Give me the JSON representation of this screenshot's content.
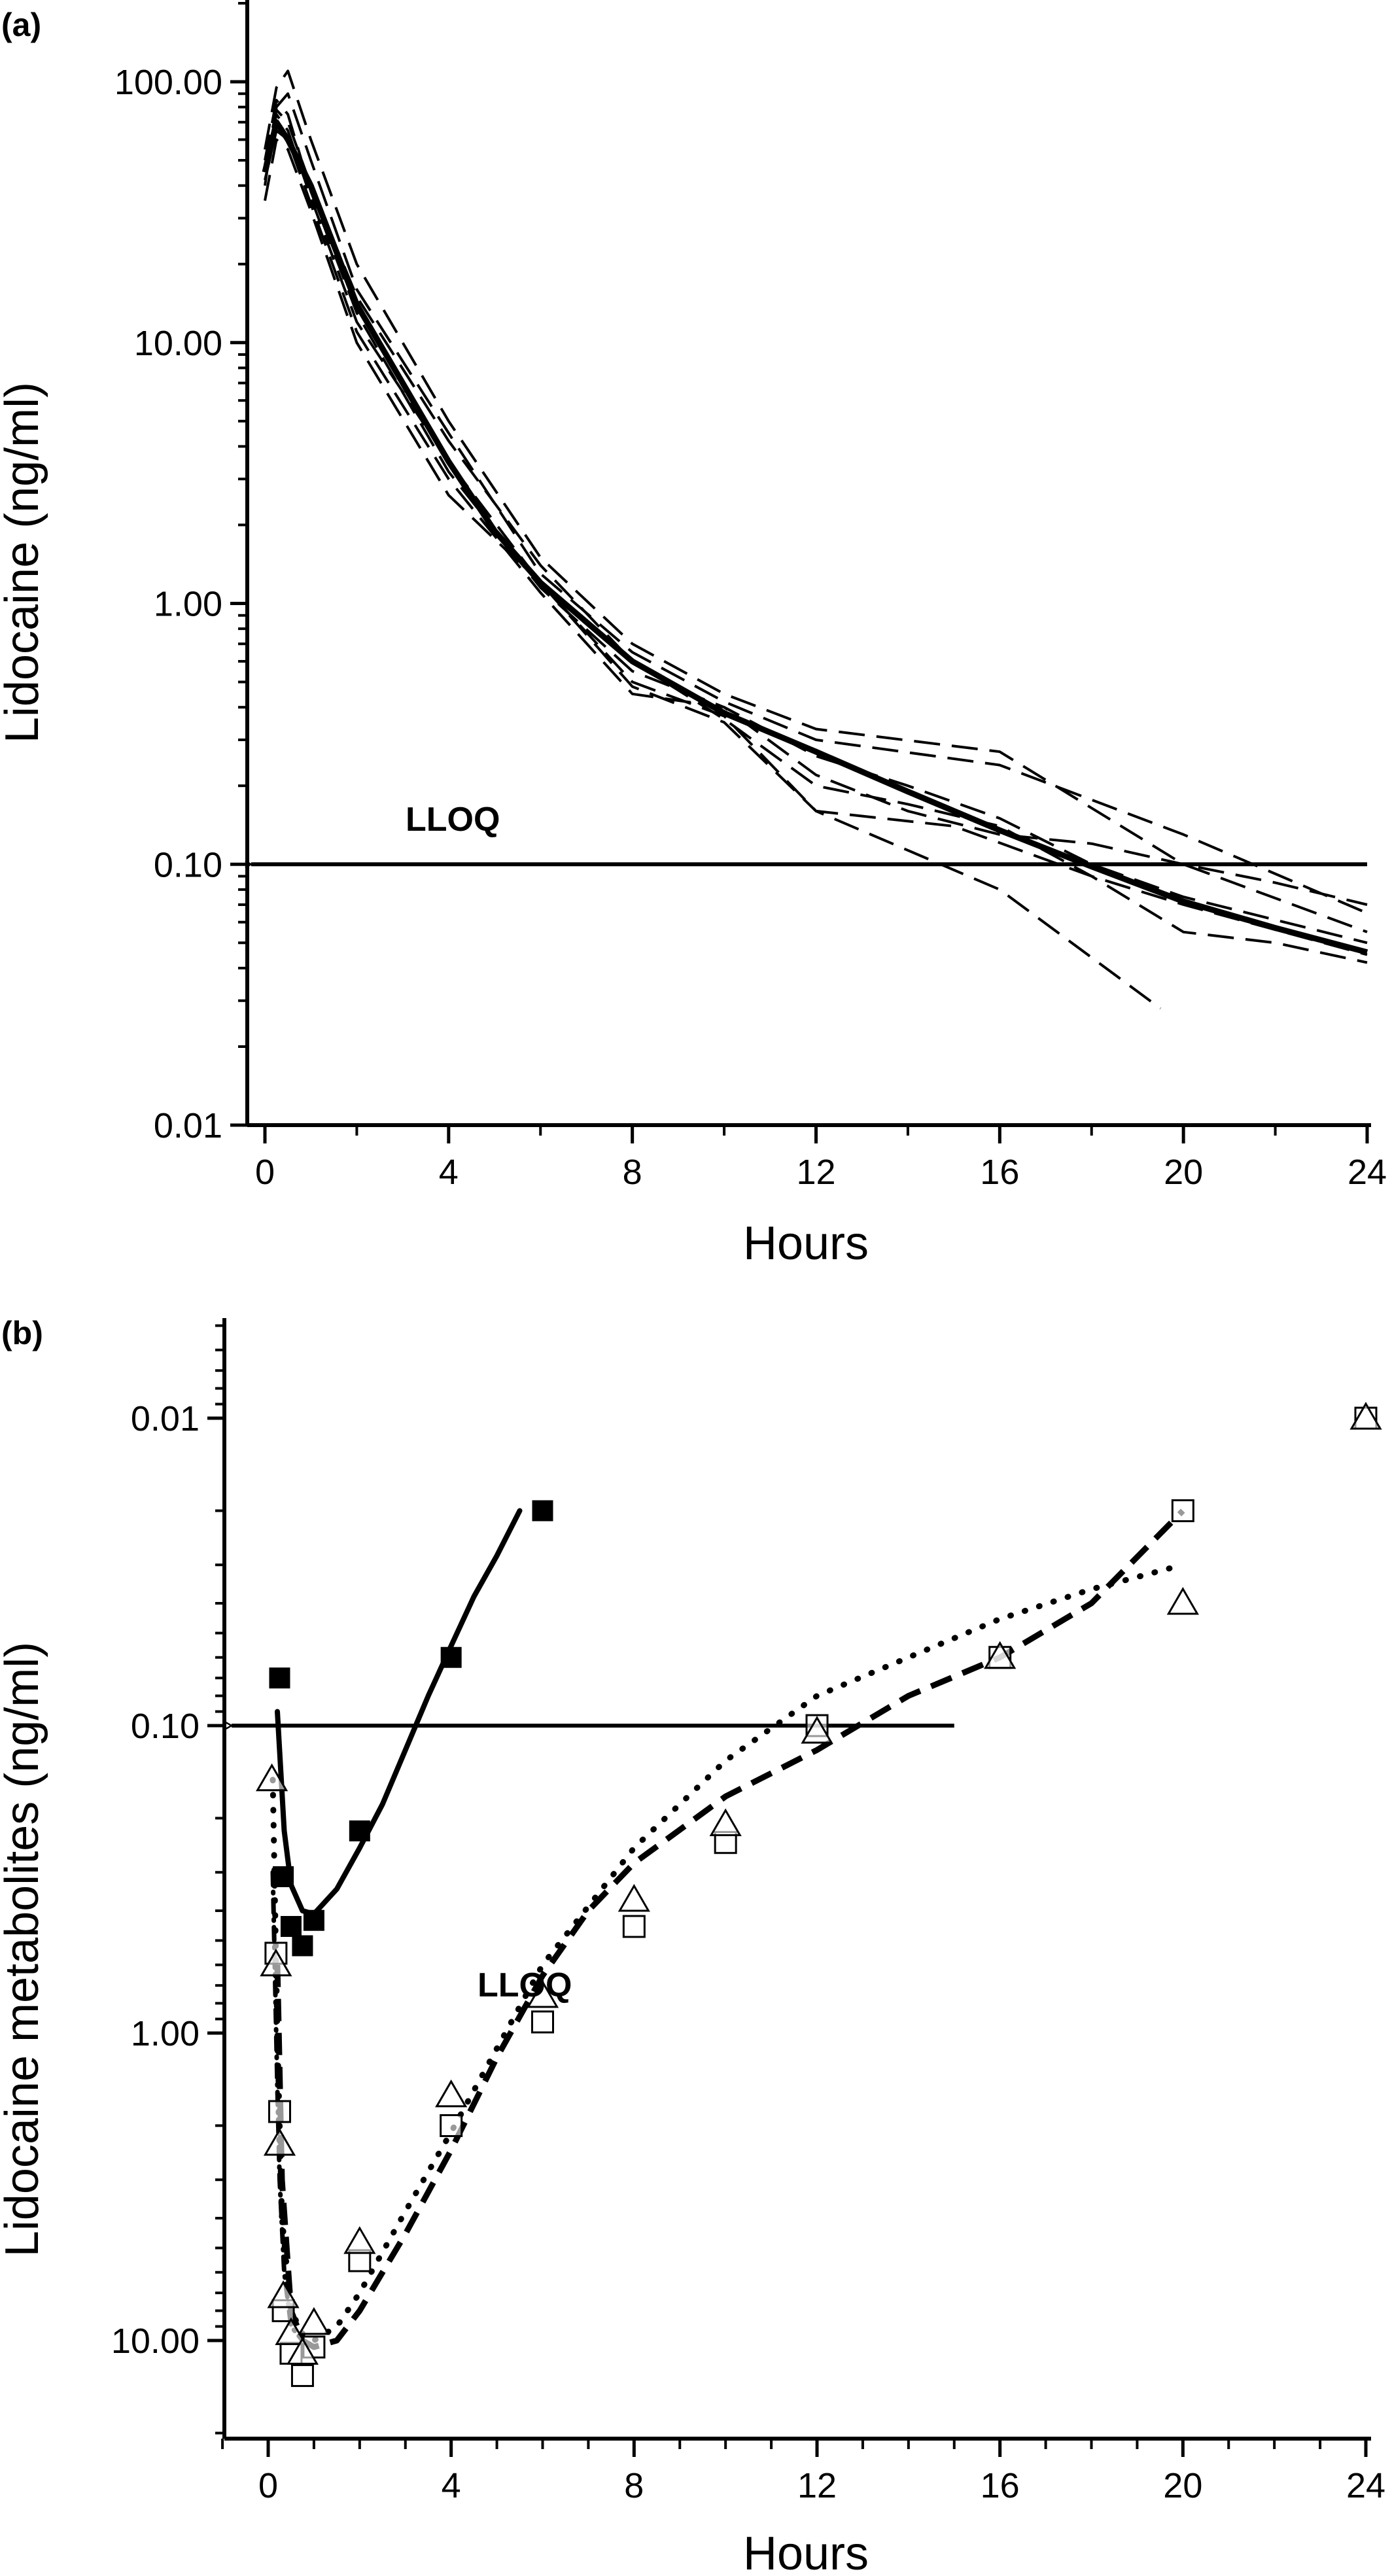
{
  "chart_data": [
    {
      "panel_label": "(a)",
      "type": "line",
      "xlabel": "Hours",
      "ylabel": "Lidocaine (ng/ml)",
      "xlim": [
        -0.5,
        24
      ],
      "ylim": [
        0.01,
        200
      ],
      "yscale": "log",
      "grid": false,
      "legend": "none",
      "x_ticks": [
        0,
        4,
        8,
        12,
        16,
        20,
        24
      ],
      "x_tick_labels": [
        "0",
        "4",
        "8",
        "12",
        "16",
        "20",
        "24"
      ],
      "y_ticks": [
        0.01,
        0.1,
        1,
        10,
        100
      ],
      "y_tick_labels": [
        "0.01",
        "0.10",
        "1.00",
        "10.00",
        "100.00"
      ],
      "reference_line": {
        "label": "LLOQ",
        "y": 0.1,
        "x_from": 24,
        "x_to": -0.3
      },
      "series": [
        {
          "style": "solid-thick",
          "x": [
            0,
            0.25,
            0.5,
            1,
            2,
            3,
            4,
            5,
            6,
            8,
            10,
            12,
            14,
            16,
            18,
            20,
            22,
            24
          ],
          "y": [
            45,
            70,
            60,
            40,
            14,
            7,
            3.5,
            1.9,
            1.2,
            0.6,
            0.38,
            0.27,
            0.19,
            0.135,
            0.098,
            0.072,
            0.057,
            0.046
          ]
        },
        {
          "style": "dashed",
          "x": [
            0,
            0.25,
            0.5,
            1,
            2,
            4,
            6,
            8,
            10,
            12,
            16,
            20,
            24
          ],
          "y": [
            55,
            95,
            110,
            60,
            20,
            5,
            1.5,
            0.7,
            0.45,
            0.33,
            0.27,
            0.1,
            0.055
          ]
        },
        {
          "style": "dashed",
          "x": [
            0,
            0.25,
            0.5,
            1,
            2,
            4,
            6,
            8,
            10,
            12,
            16,
            20,
            24
          ],
          "y": [
            40,
            80,
            90,
            50,
            16,
            4.5,
            1.3,
            0.65,
            0.42,
            0.3,
            0.24,
            0.13,
            0.065
          ]
        },
        {
          "style": "dashed",
          "x": [
            0,
            0.25,
            0.5,
            1,
            2,
            4,
            6,
            8,
            10,
            12,
            14,
            16,
            18,
            20,
            24
          ],
          "y": [
            50,
            85,
            75,
            38,
            13,
            3.2,
            1.15,
            0.55,
            0.4,
            0.26,
            0.2,
            0.15,
            0.1,
            0.075,
            0.05
          ]
        },
        {
          "style": "dashed",
          "x": [
            0,
            0.25,
            0.5,
            1,
            2,
            4,
            6,
            8,
            10,
            12,
            15,
            18,
            20,
            24
          ],
          "y": [
            35,
            60,
            55,
            32,
            10,
            2.6,
            1.2,
            0.5,
            0.37,
            0.16,
            0.14,
            0.09,
            0.07,
            0.045
          ]
        },
        {
          "style": "dashed",
          "x": [
            0,
            0.25,
            0.5,
            1,
            2,
            4,
            6,
            8,
            10,
            12,
            16,
            19.5
          ],
          "y": [
            45,
            75,
            65,
            36,
            12,
            3.5,
            1.2,
            0.48,
            0.35,
            0.16,
            0.08,
            0.028
          ]
        },
        {
          "style": "dashed",
          "x": [
            0,
            0.25,
            0.5,
            1,
            2,
            4,
            6,
            8,
            10,
            12,
            14,
            16,
            18,
            20,
            22,
            24
          ],
          "y": [
            48,
            78,
            70,
            40,
            15,
            4.2,
            1.4,
            0.6,
            0.36,
            0.2,
            0.17,
            0.14,
            0.09,
            0.055,
            0.05,
            0.042
          ]
        },
        {
          "style": "dashed",
          "x": [
            0,
            0.25,
            0.5,
            1,
            2,
            4,
            6,
            8,
            10,
            12,
            14,
            16,
            18,
            20,
            22,
            24
          ],
          "y": [
            42,
            65,
            60,
            34,
            11,
            3,
            1.1,
            0.45,
            0.4,
            0.22,
            0.16,
            0.13,
            0.12,
            0.1,
            0.085,
            0.07
          ]
        }
      ]
    },
    {
      "panel_label": "(b)",
      "type": "scatter",
      "xlabel": "Hours",
      "ylabel": "Lidocaine metabolites (ng/ml)",
      "xlim": [
        -1,
        24
      ],
      "ylim": [
        0.004,
        20
      ],
      "yscale": "log",
      "grid": false,
      "legend": "none",
      "x_ticks": [
        0,
        4,
        8,
        12,
        16,
        20,
        24
      ],
      "x_tick_labels": [
        "0",
        "4",
        "8",
        "12",
        "16",
        "20",
        "24"
      ],
      "y_ticks": [
        0.01,
        0.1,
        1,
        10
      ],
      "y_tick_labels": [
        "0.01",
        "0.10",
        "1.00",
        "10.00"
      ],
      "reference_line": {
        "label": "LLOQ",
        "y": 0.1,
        "x_from": 15,
        "x_to": -0.8
      },
      "markers": [
        {
          "marker": "square-filled",
          "x": [
            0.25,
            0.33,
            0.5,
            0.75,
            1,
            2,
            4,
            6
          ],
          "y": [
            0.07,
            0.31,
            0.45,
            0.52,
            0.43,
            0.22,
            0.06,
            0.02
          ]
        },
        {
          "marker": "square-open",
          "x": [
            0.17,
            0.25,
            0.33,
            0.5,
            0.75,
            1,
            2,
            4,
            6,
            8,
            10,
            12,
            16,
            20,
            24
          ],
          "y": [
            0.55,
            1.8,
            8,
            11,
            13,
            10.5,
            5.5,
            2,
            0.92,
            0.45,
            0.24,
            0.1,
            0.06,
            0.02,
            0.01
          ]
        },
        {
          "marker": "triangle-open",
          "x": [
            0.08,
            0.17,
            0.25,
            0.33,
            0.5,
            0.75,
            1,
            2,
            4,
            6,
            8,
            10,
            12,
            16,
            20,
            24
          ],
          "y": [
            0.15,
            0.6,
            2.3,
            7.2,
            9.5,
            11,
            8.8,
            4.8,
            1.6,
            0.76,
            0.37,
            0.21,
            0.105,
            0.06,
            0.04,
            0.01
          ]
        }
      ],
      "curves": [
        {
          "style": "solid",
          "x": [
            0.2,
            0.35,
            0.5,
            0.75,
            1,
            1.5,
            2,
            2.5,
            3,
            3.5,
            4,
            4.5,
            5,
            5.5
          ],
          "y": [
            0.09,
            0.22,
            0.33,
            0.4,
            0.41,
            0.34,
            0.25,
            0.18,
            0.12,
            0.08,
            0.055,
            0.038,
            0.028,
            0.02
          ]
        },
        {
          "style": "dashed",
          "x": [
            0.2,
            0.3,
            0.5,
            0.75,
            1,
            1.5,
            2,
            3,
            4,
            5,
            6,
            7,
            8,
            10,
            12,
            14,
            16,
            18,
            20
          ],
          "y": [
            0.6,
            3,
            8,
            10,
            10.5,
            10,
            8,
            4.5,
            2.4,
            1.2,
            0.65,
            0.4,
            0.28,
            0.17,
            0.12,
            0.08,
            0.06,
            0.04,
            0.02
          ]
        },
        {
          "style": "dotted",
          "x": [
            0.1,
            0.2,
            0.3,
            0.5,
            0.75,
            1,
            1.5,
            2,
            3,
            4,
            6,
            8,
            10,
            12,
            14,
            16,
            18,
            20
          ],
          "y": [
            0.15,
            1,
            4,
            8,
            9.5,
            10,
            9,
            7,
            3.8,
            2.1,
            0.6,
            0.25,
            0.13,
            0.08,
            0.06,
            0.045,
            0.036,
            0.03
          ]
        },
        {
          "style": "dash-dot",
          "x": [
            0.1,
            0.2,
            0.25,
            0.35,
            0.5,
            0.75
          ],
          "y": [
            0.3,
            1.5,
            3,
            6,
            9,
            10
          ]
        }
      ]
    }
  ]
}
